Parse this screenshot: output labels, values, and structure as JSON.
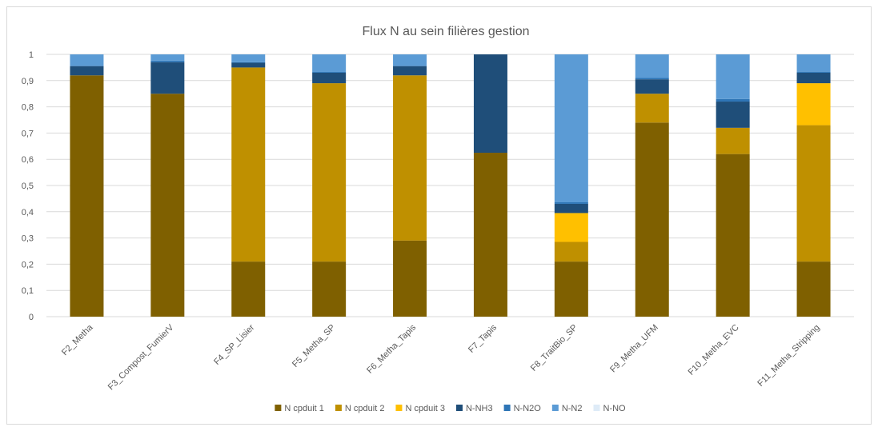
{
  "chart_data": {
    "type": "bar",
    "stacked": true,
    "title": "Flux N au sein filières gestion",
    "categories": [
      "F2_Metha",
      "F3_Compost_FumierV",
      "F4_SP_Lisier",
      "F5_Metha_SP",
      "F6_Metha_Tapis",
      "F7_Tapis",
      "F8_TraitBio_SP",
      "F9_Metha_UFM",
      "F10_Metha_EVC",
      "F11_Metha_Stripping"
    ],
    "ylim": [
      0,
      1
    ],
    "y_ticks": [
      "0",
      "0,1",
      "0,2",
      "0,3",
      "0,4",
      "0,5",
      "0,6",
      "0,7",
      "0,8",
      "0,9",
      "1"
    ],
    "grid": true,
    "legend_position": "bottom",
    "series": [
      {
        "name": "N cpduit 1",
        "color": "#7f6000",
        "values": [
          0.92,
          0.85,
          0.21,
          0.21,
          0.29,
          0.625,
          0.21,
          0.74,
          0.62,
          0.21
        ]
      },
      {
        "name": "N cpduit 2",
        "color": "#bf9000",
        "values": [
          0.0,
          0.0,
          0.74,
          0.68,
          0.63,
          0.0,
          0.075,
          0.11,
          0.1,
          0.52
        ]
      },
      {
        "name": "N cpduit 3",
        "color": "#ffc000",
        "values": [
          0.0,
          0.0,
          0.0,
          0.0,
          0.0,
          0.0,
          0.11,
          0.0,
          0.0,
          0.16
        ]
      },
      {
        "name": "N-NH3",
        "color": "#1f4e79",
        "values": [
          0.035,
          0.12,
          0.018,
          0.04,
          0.035,
          0.375,
          0.035,
          0.055,
          0.1,
          0.04
        ]
      },
      {
        "name": "N-N2O",
        "color": "#2e75b6",
        "values": [
          0.002,
          0.006,
          0.002,
          0.003,
          0.002,
          0.0,
          0.006,
          0.005,
          0.01,
          0.004
        ]
      },
      {
        "name": "N-N2",
        "color": "#5b9bd5",
        "values": [
          0.043,
          0.024,
          0.03,
          0.067,
          0.043,
          0.0,
          0.564,
          0.09,
          0.17,
          0.066
        ]
      },
      {
        "name": "N-NO",
        "color": "#deebf7",
        "values": [
          0.0,
          0.0,
          0.0,
          0.0,
          0.0,
          0.0,
          0.0,
          0.0,
          0.0,
          0.0
        ]
      }
    ]
  }
}
